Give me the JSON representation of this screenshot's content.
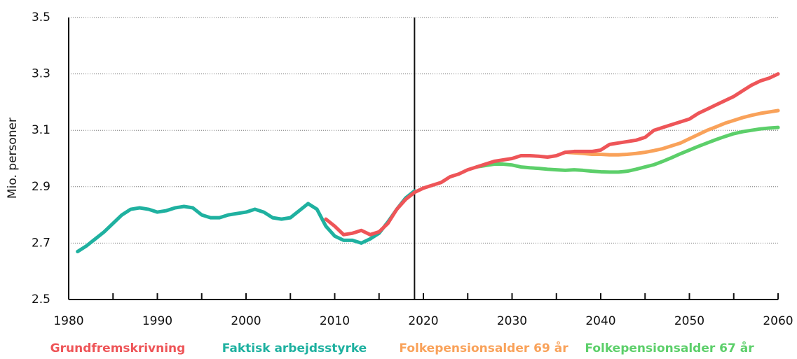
{
  "chart_data": {
    "type": "line",
    "y_label": "Mio. personer",
    "x": [
      1981,
      1982,
      1983,
      1984,
      1985,
      1986,
      1987,
      1988,
      1989,
      1990,
      1991,
      1992,
      1993,
      1994,
      1995,
      1996,
      1997,
      1998,
      1999,
      2000,
      2001,
      2002,
      2003,
      2004,
      2005,
      2006,
      2007,
      2008,
      2009,
      2010,
      2011,
      2012,
      2013,
      2014,
      2015,
      2016,
      2017,
      2018,
      2019,
      2020,
      2021,
      2022,
      2023,
      2024,
      2025,
      2026,
      2027,
      2028,
      2029,
      2030,
      2031,
      2032,
      2033,
      2034,
      2035,
      2036,
      2037,
      2038,
      2039,
      2040,
      2041,
      2042,
      2043,
      2044,
      2045,
      2046,
      2047,
      2048,
      2049,
      2050,
      2051,
      2052,
      2053,
      2054,
      2055,
      2056,
      2057,
      2058,
      2059,
      2060
    ],
    "series": [
      {
        "name": "Faktisk arbejdsstyrke",
        "color": "#1fb1a0",
        "values": [
          2.67,
          2.69,
          2.715,
          2.74,
          2.77,
          2.8,
          2.82,
          2.825,
          2.82,
          2.81,
          2.815,
          2.825,
          2.83,
          2.825,
          2.8,
          2.79,
          2.79,
          2.8,
          2.805,
          2.81,
          2.82,
          2.81,
          2.79,
          2.785,
          2.79,
          2.815,
          2.84,
          2.82,
          2.76,
          2.725,
          2.71,
          2.71,
          2.7,
          2.715,
          2.735,
          2.775,
          2.82,
          2.86,
          2.885,
          null,
          null,
          null,
          null,
          null,
          null,
          null,
          null,
          null,
          null,
          null,
          null,
          null,
          null,
          null,
          null,
          null,
          null,
          null,
          null,
          null,
          null,
          null,
          null,
          null,
          null,
          null,
          null,
          null,
          null,
          null,
          null,
          null,
          null,
          null,
          null,
          null,
          null,
          null,
          null,
          null
        ]
      },
      {
        "name": "Folkepensionsalder 67 år",
        "color": "#5ccf6a",
        "values": [
          null,
          null,
          null,
          null,
          null,
          null,
          null,
          null,
          null,
          null,
          null,
          null,
          null,
          null,
          null,
          null,
          null,
          null,
          null,
          null,
          null,
          null,
          null,
          null,
          null,
          null,
          null,
          null,
          null,
          null,
          null,
          null,
          null,
          null,
          null,
          null,
          null,
          null,
          null,
          null,
          null,
          null,
          null,
          null,
          null,
          2.97,
          2.975,
          2.98,
          2.98,
          2.977,
          2.97,
          2.967,
          2.965,
          2.962,
          2.96,
          2.958,
          2.96,
          2.958,
          2.955,
          2.953,
          2.952,
          2.952,
          2.955,
          2.962,
          2.97,
          2.978,
          2.99,
          3.003,
          3.017,
          3.03,
          3.043,
          3.055,
          3.067,
          3.078,
          3.088,
          3.095,
          3.1,
          3.105,
          3.108,
          3.11
        ]
      },
      {
        "name": "Folkepensionsalder 69 år",
        "color": "#f9a25a",
        "values": [
          null,
          null,
          null,
          null,
          null,
          null,
          null,
          null,
          null,
          null,
          null,
          null,
          null,
          null,
          null,
          null,
          null,
          null,
          null,
          null,
          null,
          null,
          null,
          null,
          null,
          null,
          null,
          null,
          null,
          null,
          null,
          null,
          null,
          null,
          null,
          null,
          null,
          null,
          null,
          null,
          null,
          null,
          null,
          null,
          null,
          null,
          null,
          null,
          null,
          null,
          null,
          null,
          null,
          null,
          null,
          3.022,
          3.02,
          3.018,
          3.015,
          3.015,
          3.013,
          3.013,
          3.015,
          3.018,
          3.022,
          3.028,
          3.035,
          3.045,
          3.055,
          3.07,
          3.085,
          3.1,
          3.112,
          3.125,
          3.135,
          3.145,
          3.153,
          3.16,
          3.165,
          3.17
        ]
      },
      {
        "name": "Grundfremskrivning",
        "color": "#ee5558",
        "values": [
          null,
          null,
          null,
          null,
          null,
          null,
          null,
          null,
          null,
          null,
          null,
          null,
          null,
          null,
          null,
          null,
          null,
          null,
          null,
          null,
          null,
          null,
          null,
          null,
          null,
          null,
          null,
          null,
          2.785,
          2.76,
          2.73,
          2.735,
          2.745,
          2.73,
          2.74,
          2.77,
          2.82,
          2.855,
          2.88,
          2.895,
          2.905,
          2.915,
          2.935,
          2.945,
          2.96,
          2.97,
          2.98,
          2.99,
          2.995,
          3.0,
          3.01,
          3.01,
          3.008,
          3.005,
          3.01,
          3.022,
          3.025,
          3.025,
          3.025,
          3.03,
          3.05,
          3.055,
          3.06,
          3.065,
          3.075,
          3.1,
          3.11,
          3.12,
          3.13,
          3.14,
          3.16,
          3.175,
          3.19,
          3.205,
          3.22,
          3.24,
          3.26,
          3.275,
          3.285,
          3.3
        ]
      }
    ],
    "legend_order": [
      3,
      0,
      2,
      1
    ],
    "xlim": [
      1980,
      2060
    ],
    "xticks": [
      1980,
      1990,
      2000,
      2010,
      2020,
      2030,
      2040,
      2050,
      2060
    ],
    "xminor": [
      1985,
      1995,
      2005,
      2015,
      2025,
      2035,
      2045,
      2055
    ],
    "ylim": [
      2.5,
      3.5
    ],
    "yticks": [
      2.5,
      2.7,
      2.9,
      3.1,
      3.3,
      3.5
    ],
    "grid": true,
    "vline": 2019,
    "legend": "bottom"
  }
}
